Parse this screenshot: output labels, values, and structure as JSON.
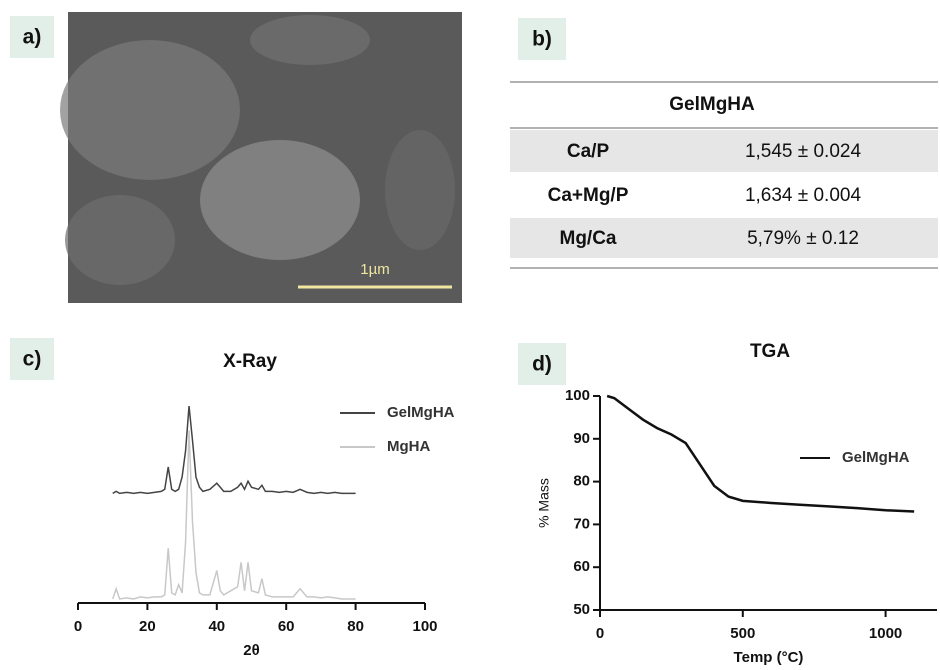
{
  "panel_labels": [
    "a)",
    "b)",
    "c)",
    "d)"
  ],
  "image": {
    "scale_bar": "1µm"
  },
  "table": {
    "header": "GelMgHA",
    "rows": [
      [
        "Ca/P",
        "1,545 ± 0.024"
      ],
      [
        "Ca+Mg/P",
        "1,634 ± 0.004"
      ],
      [
        "Mg/Ca",
        "5,79% ± 0.12"
      ]
    ]
  },
  "chart_data": [
    {
      "type": "line",
      "title": "X-Ray",
      "x_label": "2θ",
      "x": [
        10,
        11,
        12,
        14,
        16,
        18,
        20,
        22,
        24,
        25,
        26,
        27,
        28,
        29,
        30,
        31,
        32,
        33,
        34,
        35,
        36,
        38,
        40,
        41,
        42,
        44,
        46,
        47,
        48,
        49,
        50,
        52,
        53,
        54,
        56,
        58,
        60,
        62,
        64,
        66,
        68,
        70,
        72,
        74,
        76,
        78,
        80
      ],
      "series": [
        {
          "name": "GelMgHA",
          "color": "#444444",
          "values": [
            54,
            55,
            54,
            54.5,
            54,
            54.5,
            54,
            54.5,
            55,
            56,
            67,
            56,
            55,
            56,
            62,
            75,
            97,
            80,
            62,
            57,
            55,
            56,
            59,
            57,
            55,
            55,
            57,
            59,
            56,
            60,
            57,
            56,
            58,
            55,
            55,
            54.5,
            55,
            54.5,
            56,
            54.5,
            54,
            54.5,
            54,
            54.5,
            54,
            54,
            54
          ]
        },
        {
          "name": "MgHA",
          "color": "#c8c8c8",
          "values": [
            2,
            7,
            2,
            2.5,
            2,
            3,
            2.5,
            3,
            3,
            4,
            27,
            5,
            4,
            9,
            5,
            30,
            85,
            40,
            15,
            5,
            4,
            4,
            16,
            6,
            4,
            6,
            8,
            20,
            6,
            20,
            6,
            5,
            12,
            4,
            3,
            3,
            3,
            3,
            7,
            3,
            3,
            2.5,
            3,
            2.5,
            2,
            2,
            2
          ]
        }
      ],
      "xlim": [
        0,
        100
      ],
      "xticks": [
        0,
        20,
        40,
        60,
        80,
        100
      ],
      "ylim": [
        0,
        100
      ]
    },
    {
      "type": "line",
      "title": "TGA",
      "x_label": "Temp (°C)",
      "y_label": "% Mass",
      "x": [
        25,
        50,
        100,
        150,
        200,
        250,
        300,
        350,
        400,
        450,
        500,
        600,
        700,
        800,
        900,
        1000,
        1100
      ],
      "series": [
        {
          "name": "GelMgHA",
          "color": "#111111",
          "values": [
            100,
            99.5,
            97,
            94.5,
            92.5,
            91,
            89,
            84,
            79,
            76.5,
            75.5,
            75,
            74.6,
            74.2,
            73.8,
            73.3,
            73
          ]
        }
      ],
      "xlim": [
        0,
        1180
      ],
      "xticks": [
        0,
        500,
        1000
      ],
      "ylim": [
        50,
        100
      ],
      "yticks": [
        50,
        60,
        70,
        80,
        90,
        100
      ]
    }
  ]
}
